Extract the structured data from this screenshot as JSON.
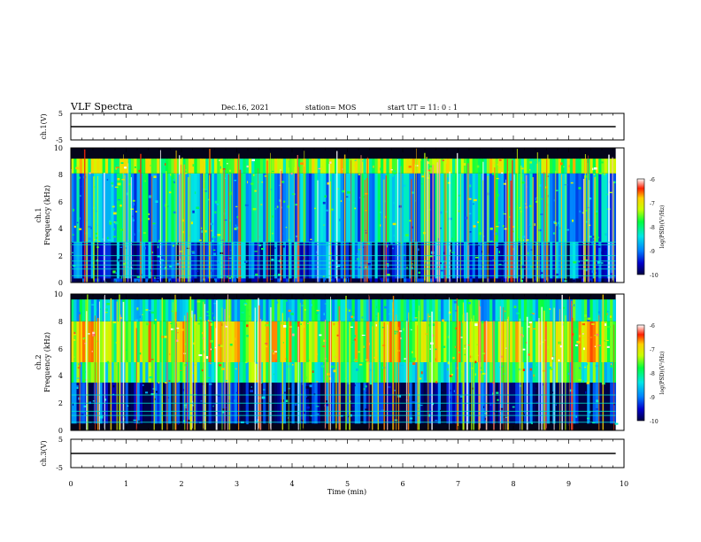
{
  "header": {
    "title": "VLF Spectra",
    "date": "Dec.16, 2021",
    "station": "station= MOS",
    "start": "start  UT =   11: 0   : 1"
  },
  "colorbar_label": "log(PSD)(V²/Hz)",
  "colors": {
    "spectrogram_background": "#04041a",
    "trace": "#000000"
  },
  "chart_data": [
    {
      "type": "line",
      "ylabel": "ch.1(V)",
      "ylim": [
        -5,
        5
      ],
      "yticks": [
        "5",
        "-5"
      ],
      "x": [
        0,
        9.85
      ],
      "y": [
        0,
        0
      ]
    },
    {
      "type": "heatmap",
      "ylabel_line1": "ch.1",
      "ylabel_line2": "Frequency (kHz)",
      "ylim": [
        0,
        10
      ],
      "yticks": [
        "0",
        "2",
        "4",
        "6",
        "8",
        "10"
      ],
      "xlim": [
        0,
        10
      ],
      "data_x_extent": [
        0,
        9.85
      ],
      "bands": [
        {
          "f_low": 8.1,
          "f_high": 9.2,
          "level": -7.5
        },
        {
          "f_low": 3.0,
          "f_high": 8.1,
          "level": -8.6
        },
        {
          "f_low": 0.3,
          "f_high": 3.0,
          "level": -9.2
        },
        {
          "f_low": 0.0,
          "f_high": 0.3,
          "level": -9.8
        }
      ],
      "lines_khz": [
        0.5,
        1.0,
        1.3,
        1.6,
        2.0,
        2.8,
        3.0
      ],
      "colorbar": {
        "range": [
          -10,
          -6
        ],
        "ticks": [
          "-6",
          "-7",
          "-8",
          "-9",
          "-10"
        ]
      }
    },
    {
      "type": "heatmap",
      "ylabel_line1": "ch.2",
      "ylabel_line2": "Frequency (kHz)",
      "ylim": [
        0,
        10
      ],
      "yticks": [
        "0",
        "2",
        "4",
        "6",
        "8",
        "10"
      ],
      "xlim": [
        0,
        10
      ],
      "data_x_extent": [
        0,
        9.85
      ],
      "bands": [
        {
          "f_low": 5.0,
          "f_high": 8.0,
          "level": -7.3
        },
        {
          "f_low": 3.5,
          "f_high": 5.0,
          "level": -8.0
        },
        {
          "f_low": 8.0,
          "f_high": 9.6,
          "level": -8.3
        },
        {
          "f_low": 0.5,
          "f_high": 3.5,
          "level": -9.6
        }
      ],
      "lines_khz": [
        0.6,
        1.1,
        1.4,
        2.0,
        2.6
      ],
      "colorbar": {
        "range": [
          -10,
          -6
        ],
        "ticks": [
          "-6",
          "-7",
          "-8",
          "-9",
          "-10"
        ]
      }
    },
    {
      "type": "line",
      "ylabel": "ch.3(V)",
      "ylim": [
        -5,
        5
      ],
      "yticks": [
        "5",
        "-5"
      ],
      "x": [
        0,
        9.85
      ],
      "y": [
        0,
        0
      ]
    }
  ],
  "xaxis": {
    "label": "Time (min)",
    "ticks": [
      "0",
      "1",
      "2",
      "3",
      "4",
      "5",
      "6",
      "7",
      "8",
      "9",
      "10"
    ]
  }
}
